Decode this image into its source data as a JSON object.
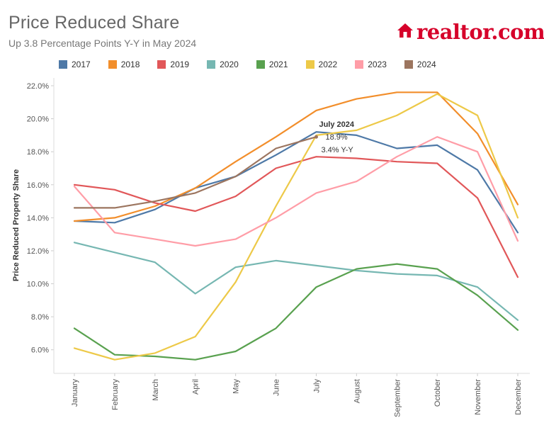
{
  "header": {
    "title": "Price Reduced Share",
    "subtitle": "Up 3.8 Percentage Points Y-Y in May 2024",
    "logo_text": "realtor.com",
    "logo_icon": "house-icon",
    "logo_color": "#d6002a"
  },
  "chart_data": {
    "type": "line",
    "title": "Price Reduced Share",
    "subtitle": "Up 3.8 Percentage Points Y-Y in May 2024",
    "xlabel": "",
    "ylabel": "Price Reduced Property Share",
    "ylim": [
      5.0,
      22.0
    ],
    "yticks": [
      6,
      8,
      10,
      12,
      14,
      16,
      18,
      20,
      22
    ],
    "ytick_labels": [
      "6.0%",
      "8.0%",
      "10.0%",
      "12.0%",
      "14.0%",
      "16.0%",
      "18.0%",
      "20.0%",
      "22.0%"
    ],
    "legend_position": "top",
    "grid": false,
    "categories": [
      "January",
      "February",
      "March",
      "April",
      "May",
      "June",
      "July",
      "August",
      "September",
      "October",
      "November",
      "December"
    ],
    "series": [
      {
        "name": "2017",
        "color": "#4e79a7",
        "values": [
          13.8,
          13.7,
          14.5,
          15.8,
          16.5,
          17.8,
          19.2,
          19.0,
          18.2,
          18.4,
          16.9,
          13.1
        ]
      },
      {
        "name": "2018",
        "color": "#f28e2b",
        "values": [
          13.8,
          14.0,
          14.7,
          15.8,
          17.4,
          18.9,
          20.5,
          21.2,
          21.6,
          21.6,
          19.1,
          14.8
        ]
      },
      {
        "name": "2019",
        "color": "#e15759",
        "values": [
          16.0,
          15.7,
          14.9,
          14.4,
          15.3,
          17.0,
          17.7,
          17.6,
          17.4,
          17.3,
          15.2,
          10.4
        ]
      },
      {
        "name": "2020",
        "color": "#76b7b2",
        "values": [
          12.5,
          11.9,
          11.3,
          9.4,
          11.0,
          11.4,
          11.1,
          10.8,
          10.6,
          10.5,
          9.8,
          7.8
        ]
      },
      {
        "name": "2021",
        "color": "#59a14f",
        "values": [
          7.3,
          5.7,
          5.6,
          5.4,
          5.9,
          7.3,
          9.8,
          10.9,
          11.2,
          10.9,
          9.3,
          7.2
        ]
      },
      {
        "name": "2022",
        "color": "#edc948",
        "values": [
          6.1,
          5.4,
          5.8,
          6.8,
          10.1,
          14.7,
          19.0,
          19.3,
          20.2,
          21.5,
          20.2,
          14.0
        ]
      },
      {
        "name": "2023",
        "color": "#ff9da7",
        "values": [
          15.9,
          13.1,
          12.7,
          12.3,
          12.7,
          14.0,
          15.5,
          16.2,
          17.7,
          18.9,
          18.0,
          12.6
        ]
      },
      {
        "name": "2024",
        "color": "#9c755f",
        "values": [
          14.6,
          14.6,
          15.0,
          15.5,
          16.5,
          18.2,
          18.9,
          null,
          null,
          null,
          null,
          null
        ]
      }
    ],
    "annotation": {
      "title": "July 2024",
      "value": "18.9%",
      "change": "3.4% Y-Y",
      "category": "July",
      "y": 18.9,
      "series": "2024"
    }
  }
}
